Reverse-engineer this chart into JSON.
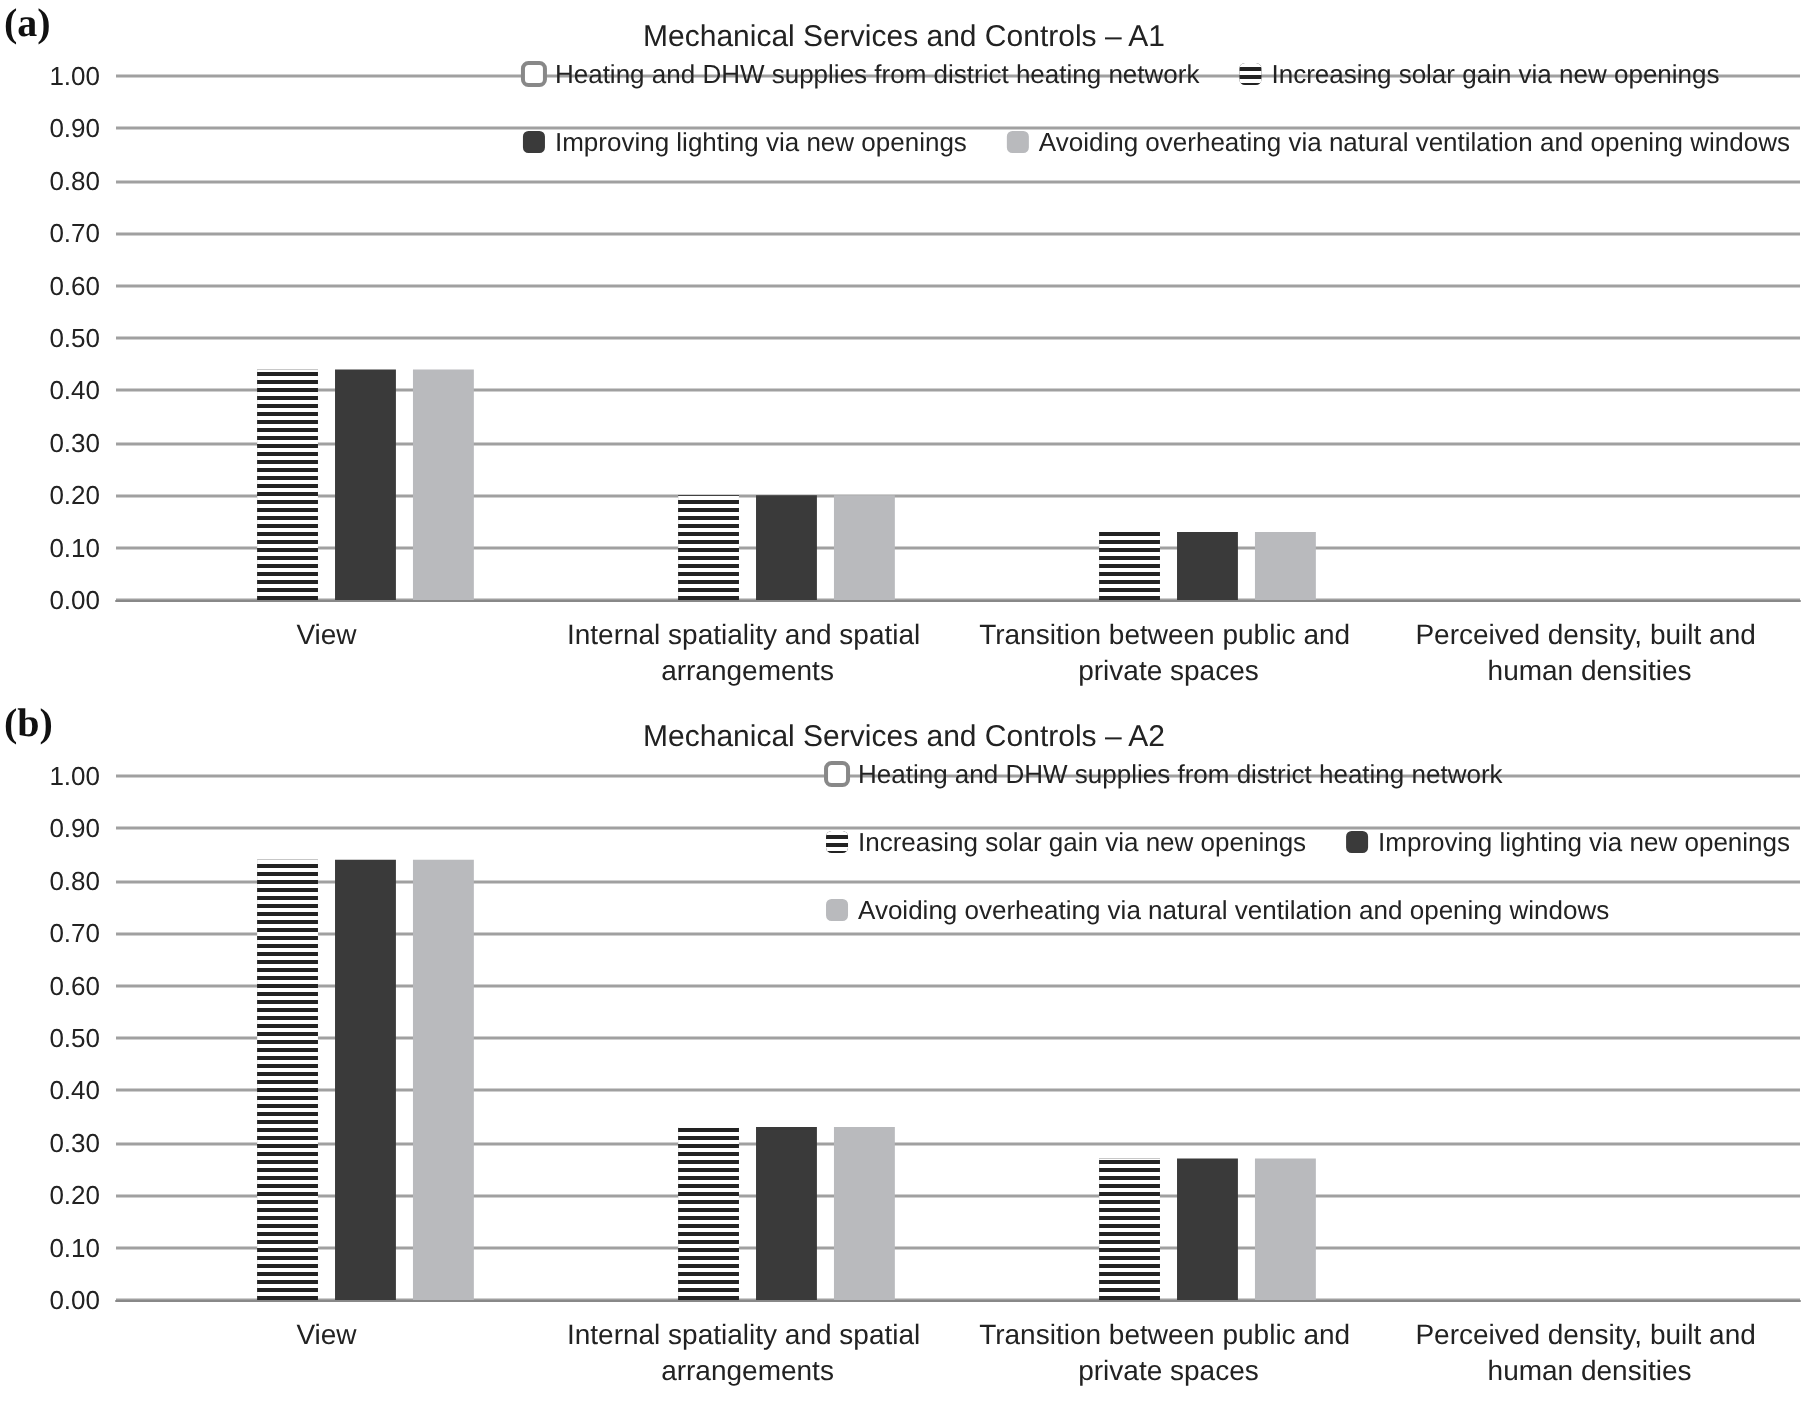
{
  "chart_data": [
    {
      "type": "bar",
      "title": "Mechanical Services and Controls – A1",
      "annotations": [
        "(a)"
      ],
      "categories": [
        "View",
        "Internal spatiality and spatial arrangements",
        "Transition between public and private spaces",
        "Perceived density, built and human densities"
      ],
      "series": [
        {
          "name": "Heating and DHW supplies from district heating network",
          "color": "#ffffff",
          "values": [
            null,
            null,
            null,
            null
          ]
        },
        {
          "name": "Increasing solar gain via new openings",
          "color": "#222222",
          "values": [
            0.44,
            0.2,
            0.13,
            0
          ]
        },
        {
          "name": "Improving lighting via new openings",
          "color": "#3a3a3a",
          "values": [
            0.44,
            0.2,
            0.13,
            0
          ]
        },
        {
          "name": "Avoiding overheating via natural ventilation and opening windows",
          "color": "#b9babd",
          "values": [
            0.44,
            0.2,
            0.13,
            0
          ]
        }
      ],
      "ylim": [
        0,
        1
      ],
      "yticks": [
        {
          "value": 0,
          "label": "0.00"
        },
        {
          "value": 0.1,
          "label": "0.10"
        },
        {
          "value": 0.2,
          "label": "0.20"
        },
        {
          "value": 0.3,
          "label": "0.30"
        },
        {
          "value": 0.4,
          "label": "0.40"
        },
        {
          "value": 0.5,
          "label": "0.50"
        },
        {
          "value": 0.6,
          "label": "0.60"
        },
        {
          "value": 0.7,
          "label": "0.70"
        },
        {
          "value": 0.8,
          "label": "0.80"
        },
        {
          "value": 0.9,
          "label": "0.90"
        },
        {
          "value": 1,
          "label": "1.00"
        }
      ],
      "grid": "y",
      "legend": "top right"
    },
    {
      "type": "bar",
      "title": "Mechanical Services and Controls – A2",
      "annotations": [
        "(b)"
      ],
      "categories": [
        "View",
        "Internal spatiality and spatial arrangements",
        "Transition between public and private spaces",
        "Perceived density, built and human densities"
      ],
      "series": [
        {
          "name": "Heating and DHW supplies from district heating network",
          "color": "#ffffff",
          "values": [
            null,
            null,
            null,
            null
          ]
        },
        {
          "name": "Increasing solar gain via new openings",
          "color": "#222222",
          "values": [
            0.84,
            0.33,
            0.27,
            0
          ]
        },
        {
          "name": "Improving lighting via new openings",
          "color": "#3a3a3a",
          "values": [
            0.84,
            0.33,
            0.27,
            0
          ]
        },
        {
          "name": "Avoiding overheating via natural ventilation and opening windows",
          "color": "#b9babd",
          "values": [
            0.84,
            0.33,
            0.27,
            0
          ]
        }
      ],
      "ylim": [
        0,
        1
      ],
      "yticks": [
        {
          "value": 0,
          "label": "0.00"
        },
        {
          "value": 0.1,
          "label": "0.10"
        },
        {
          "value": 0.2,
          "label": "0.20"
        },
        {
          "value": 0.3,
          "label": "0.30"
        },
        {
          "value": 0.4,
          "label": "0.40"
        },
        {
          "value": 0.5,
          "label": "0.50"
        },
        {
          "value": 0.6,
          "label": "0.60"
        },
        {
          "value": 0.7,
          "label": "0.70"
        },
        {
          "value": 0.8,
          "label": "0.80"
        },
        {
          "value": 0.9,
          "label": "0.90"
        },
        {
          "value": 1,
          "label": "1.00"
        }
      ],
      "grid": "y",
      "legend": "top right"
    }
  ]
}
